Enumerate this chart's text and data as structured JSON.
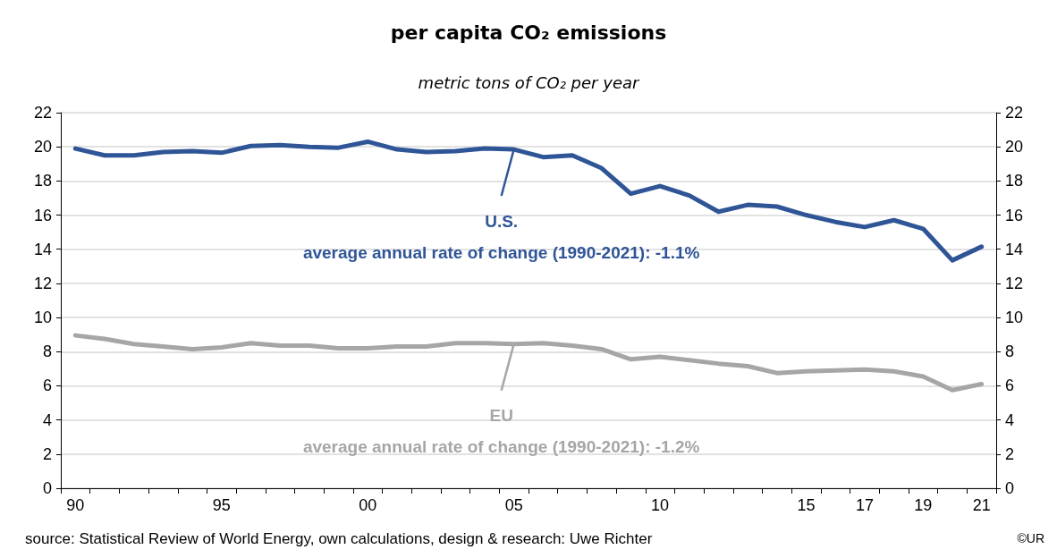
{
  "chart_data": {
    "type": "line",
    "title": "per capita CO₂ emissions",
    "subtitle": "metric tons of CO₂ per year",
    "categories": [
      "90",
      null,
      null,
      null,
      null,
      "95",
      null,
      null,
      null,
      null,
      "00",
      null,
      null,
      null,
      null,
      "05",
      null,
      null,
      null,
      null,
      "10",
      null,
      null,
      null,
      null,
      "15",
      null,
      "17",
      null,
      "19",
      null,
      "21"
    ],
    "series": [
      {
        "name": "U.S.",
        "color": "#2f5597",
        "values": [
          19.9,
          19.5,
          19.5,
          19.7,
          19.75,
          19.65,
          20.05,
          20.1,
          20.0,
          19.95,
          20.3,
          19.85,
          19.7,
          19.75,
          19.9,
          19.85,
          19.4,
          19.5,
          18.75,
          17.25,
          17.7,
          17.15,
          16.2,
          16.6,
          16.5,
          16.0,
          15.6,
          15.3,
          15.7,
          15.2,
          13.35,
          14.15
        ]
      },
      {
        "name": "EU",
        "color": "#a6a6a6",
        "values": [
          8.95,
          8.75,
          8.45,
          8.3,
          8.15,
          8.25,
          8.5,
          8.35,
          8.35,
          8.2,
          8.2,
          8.3,
          8.3,
          8.5,
          8.5,
          8.45,
          8.5,
          8.35,
          8.15,
          7.55,
          7.7,
          7.5,
          7.3,
          7.15,
          6.75,
          6.85,
          6.9,
          6.95,
          6.85,
          6.55,
          5.75,
          6.1
        ]
      }
    ],
    "ylim": [
      0,
      22
    ],
    "yticks": [
      0,
      2,
      4,
      6,
      8,
      10,
      12,
      14,
      16,
      18,
      20,
      22
    ],
    "y2lim": [
      0,
      22
    ],
    "y2ticks": [
      0,
      2,
      4,
      6,
      8,
      10,
      12,
      14,
      16,
      18,
      20,
      22
    ],
    "grid": "y",
    "legend": false,
    "marker": "none",
    "line_style": "solid",
    "annotations": [
      "average annual rate of change (1990-2021): -1.1%",
      "average annual rate of change (1990-2021): -1.2%",
      "source: Statistical Review of World Energy, own calculations, design & research: Uwe Richter",
      "©UR"
    ]
  }
}
